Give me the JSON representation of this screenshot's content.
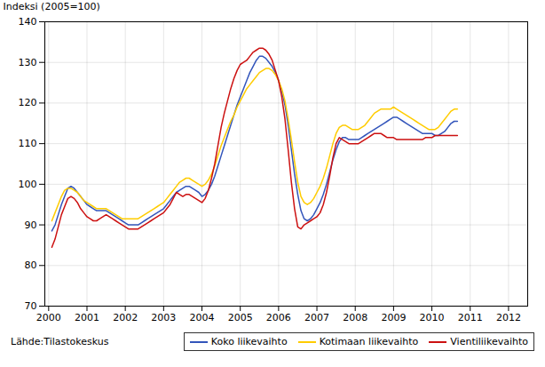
{
  "chart_data": {
    "type": "line",
    "ylabel": "Indeksi (2005=100)",
    "annotations": [
      "Lähde:Tilastokeskus"
    ],
    "xlim": [
      1999.9,
      2012.5
    ],
    "xticks": [
      2000,
      2001,
      2002,
      2003,
      2004,
      2005,
      2006,
      2007,
      2008,
      2009,
      2010,
      2011,
      2012
    ],
    "ylim": [
      70,
      140
    ],
    "yticks": [
      70,
      80,
      90,
      100,
      110,
      120,
      130,
      140
    ],
    "grid": true,
    "legend": "lower right",
    "x": [
      2000.083333,
      2000.166667,
      2000.25,
      2000.333333,
      2000.416667,
      2000.5,
      2000.583333,
      2000.666667,
      2000.75,
      2000.833333,
      2000.916667,
      2001.0,
      2001.083333,
      2001.166667,
      2001.25,
      2001.333333,
      2001.416667,
      2001.5,
      2001.583333,
      2001.666667,
      2001.75,
      2001.833333,
      2001.916667,
      2002.0,
      2002.083333,
      2002.166667,
      2002.25,
      2002.333333,
      2002.416667,
      2002.5,
      2002.583333,
      2002.666667,
      2002.75,
      2002.833333,
      2002.916667,
      2003.0,
      2003.083333,
      2003.166667,
      2003.25,
      2003.333333,
      2003.416667,
      2003.5,
      2003.583333,
      2003.666667,
      2003.75,
      2003.833333,
      2003.916667,
      2004.0,
      2004.083333,
      2004.166667,
      2004.25,
      2004.333333,
      2004.416667,
      2004.5,
      2004.583333,
      2004.666667,
      2004.75,
      2004.833333,
      2004.916667,
      2005.0,
      2005.083333,
      2005.166667,
      2005.25,
      2005.333333,
      2005.416667,
      2005.5,
      2005.583333,
      2005.666667,
      2005.75,
      2005.833333,
      2005.916667,
      2006.0,
      2006.083333,
      2006.166667,
      2006.25,
      2006.333333,
      2006.416667,
      2006.5,
      2006.583333,
      2006.666667,
      2006.75,
      2006.833333,
      2006.916667,
      2007.0,
      2007.083333,
      2007.166667,
      2007.25,
      2007.333333,
      2007.416667,
      2007.5,
      2007.583333,
      2007.666667,
      2007.75,
      2007.833333,
      2007.916667,
      2008.0,
      2008.083333,
      2008.166667,
      2008.25,
      2008.333333,
      2008.416667,
      2008.5,
      2008.583333,
      2008.666667,
      2008.75,
      2008.833333,
      2008.916667,
      2009.0,
      2009.083333,
      2009.166667,
      2009.25,
      2009.333333,
      2009.416667,
      2009.5,
      2009.583333,
      2009.666667,
      2009.75,
      2009.833333,
      2009.916667,
      2010.0,
      2010.083333,
      2010.166667,
      2010.25,
      2010.333333,
      2010.416667,
      2010.5,
      2010.583333,
      2010.666667
    ],
    "series": [
      {
        "name": "Koko liikevaihto",
        "color": "#3355bb",
        "values": [
          88.5,
          90.0,
          92.5,
          95.0,
          97.0,
          99.0,
          99.5,
          99.0,
          98.0,
          97.0,
          96.0,
          95.0,
          94.5,
          94.0,
          93.5,
          93.5,
          93.5,
          93.5,
          93.0,
          92.5,
          92.0,
          91.5,
          91.0,
          90.5,
          90.0,
          90.0,
          90.0,
          90.0,
          90.5,
          91.0,
          91.5,
          92.0,
          92.5,
          93.0,
          93.5,
          94.0,
          95.0,
          96.0,
          97.0,
          98.0,
          98.5,
          99.0,
          99.5,
          99.5,
          99.0,
          98.5,
          98.0,
          97.0,
          97.5,
          98.5,
          100.0,
          102.0,
          104.5,
          107.0,
          109.5,
          112.0,
          114.5,
          117.0,
          119.5,
          121.5,
          123.5,
          125.5,
          127.5,
          129.0,
          130.5,
          131.5,
          131.5,
          131.0,
          130.0,
          129.0,
          127.5,
          125.5,
          123.0,
          119.5,
          114.5,
          108.5,
          102.5,
          97.5,
          93.5,
          91.5,
          91.0,
          91.5,
          92.5,
          94.0,
          95.5,
          97.5,
          100.0,
          103.0,
          106.0,
          108.5,
          110.5,
          111.5,
          111.5,
          111.0,
          111.0,
          111.0,
          111.0,
          111.5,
          112.0,
          112.5,
          113.0,
          113.5,
          114.0,
          114.5,
          115.0,
          115.5,
          116.0,
          116.5,
          116.5,
          116.0,
          115.5,
          115.0,
          114.5,
          114.0,
          113.5,
          113.0,
          112.5,
          112.5,
          112.5,
          112.5,
          112.0,
          112.0,
          112.5,
          113.0,
          114.0,
          115.0,
          115.5,
          115.5
        ]
      },
      {
        "name": "Kotimaan liikevaihto",
        "color": "#ffcc00",
        "values": [
          91.0,
          93.0,
          95.0,
          97.0,
          98.5,
          99.0,
          99.0,
          98.5,
          98.0,
          97.0,
          96.0,
          95.5,
          95.0,
          94.5,
          94.0,
          94.0,
          94.0,
          94.0,
          93.5,
          93.0,
          92.5,
          92.0,
          91.5,
          91.5,
          91.5,
          91.5,
          91.5,
          91.5,
          92.0,
          92.5,
          93.0,
          93.5,
          94.0,
          94.5,
          95.0,
          95.5,
          96.5,
          97.5,
          98.5,
          99.5,
          100.5,
          101.0,
          101.5,
          101.5,
          101.0,
          100.5,
          100.0,
          99.5,
          100.0,
          101.0,
          102.5,
          104.5,
          107.0,
          109.5,
          111.5,
          113.5,
          115.5,
          117.0,
          119.0,
          120.5,
          122.0,
          123.5,
          124.5,
          125.5,
          126.5,
          127.5,
          128.0,
          128.5,
          128.5,
          128.0,
          127.0,
          125.5,
          123.5,
          120.5,
          116.0,
          111.0,
          105.5,
          100.5,
          97.0,
          95.5,
          95.0,
          95.5,
          96.5,
          98.0,
          99.5,
          101.5,
          104.0,
          107.0,
          110.0,
          112.5,
          114.0,
          114.5,
          114.5,
          114.0,
          113.5,
          113.5,
          113.5,
          114.0,
          114.5,
          115.5,
          116.5,
          117.5,
          118.0,
          118.5,
          118.5,
          118.5,
          118.5,
          119.0,
          118.5,
          118.0,
          117.5,
          117.0,
          116.5,
          116.0,
          115.5,
          115.0,
          114.5,
          114.0,
          113.5,
          113.5,
          113.5,
          114.0,
          115.0,
          116.0,
          117.0,
          118.0,
          118.5,
          118.5
        ]
      },
      {
        "name": "Vientiliikevaihto",
        "color": "#cc1111",
        "values": [
          84.5,
          86.5,
          89.5,
          92.5,
          94.5,
          96.5,
          97.0,
          96.5,
          95.5,
          94.0,
          93.0,
          92.0,
          91.5,
          91.0,
          91.0,
          91.5,
          92.0,
          92.5,
          92.0,
          91.5,
          91.0,
          90.5,
          90.0,
          89.5,
          89.0,
          89.0,
          89.0,
          89.0,
          89.5,
          90.0,
          90.5,
          91.0,
          91.5,
          92.0,
          92.5,
          93.0,
          94.0,
          95.0,
          96.5,
          98.0,
          97.5,
          97.0,
          97.5,
          97.5,
          97.0,
          96.5,
          96.0,
          95.5,
          96.5,
          98.5,
          101.5,
          105.0,
          109.5,
          114.0,
          117.5,
          120.5,
          123.5,
          126.0,
          128.0,
          129.5,
          130.0,
          130.5,
          131.5,
          132.5,
          133.0,
          133.5,
          133.5,
          133.0,
          132.0,
          130.5,
          128.0,
          125.5,
          121.5,
          116.0,
          108.5,
          100.5,
          94.0,
          89.5,
          89.0,
          90.0,
          90.5,
          91.0,
          91.5,
          92.0,
          93.0,
          95.0,
          98.0,
          102.0,
          106.5,
          110.0,
          111.5,
          111.0,
          110.5,
          110.0,
          110.0,
          110.0,
          110.0,
          110.5,
          111.0,
          111.5,
          112.0,
          112.5,
          112.5,
          112.5,
          112.0,
          111.5,
          111.5,
          111.5,
          111.0,
          111.0,
          111.0,
          111.0,
          111.0,
          111.0,
          111.0,
          111.0,
          111.0,
          111.5,
          111.5,
          111.5,
          112.0,
          112.0,
          112.0,
          112.0,
          112.0,
          112.0,
          112.0,
          112.0
        ]
      }
    ]
  }
}
